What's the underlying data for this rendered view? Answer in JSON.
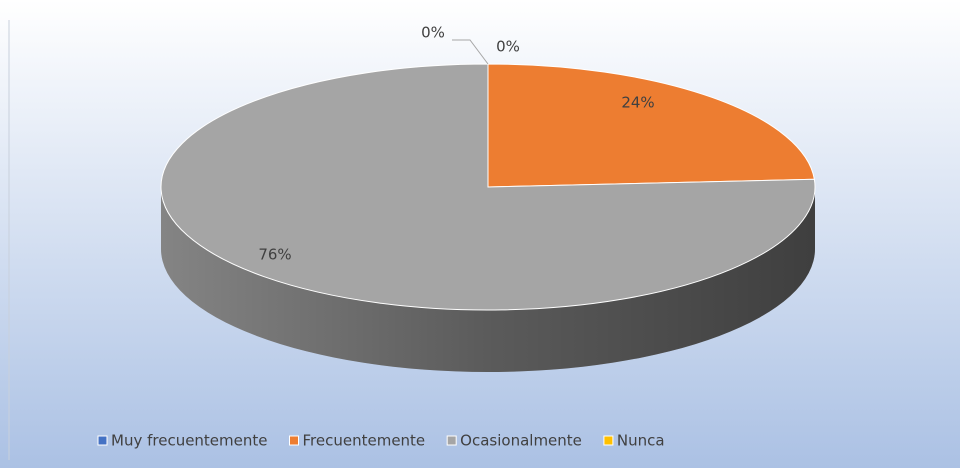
{
  "chart_data": {
    "type": "pie",
    "categories": [
      "Muy frecuentemente",
      "Frecuentemente",
      "Ocasionalmente",
      "Nunca"
    ],
    "values": [
      0,
      24,
      76,
      0
    ],
    "value_labels": [
      "0%",
      "24%",
      "76%",
      "0%"
    ],
    "colors": [
      "#4472c4",
      "#ed7d31",
      "#a5a5a5",
      "#ffc000"
    ],
    "legend": "bottom"
  }
}
